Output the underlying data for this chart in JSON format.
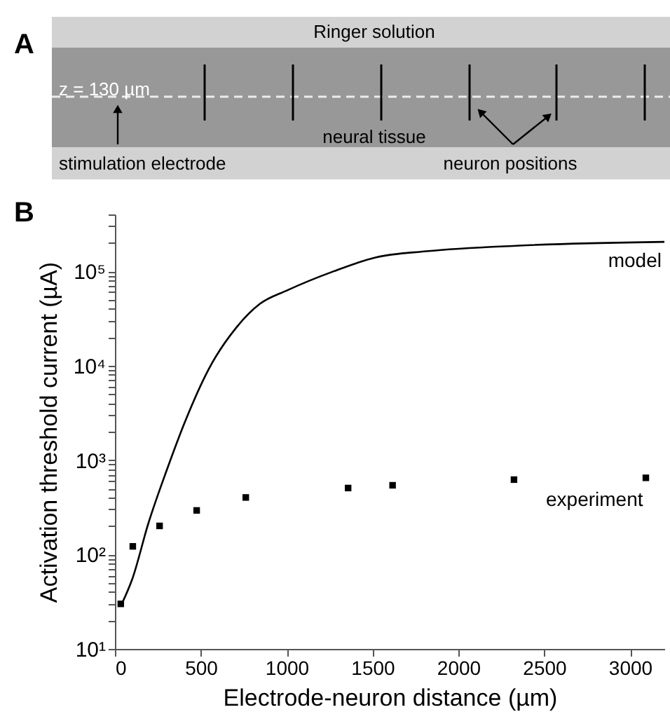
{
  "chart_data": {
    "type": "line",
    "xlabel": "Electrode-neuron distance (µm)",
    "ylabel": "Activation threshold current (µA)",
    "log": "y",
    "grid": false,
    "xlim": [
      0,
      3200
    ],
    "xticks": [
      0,
      500,
      1000,
      1500,
      2000,
      2500,
      3000
    ],
    "ylim": [
      10,
      400000
    ],
    "yticks": [
      {
        "value": 10,
        "label": "10¹"
      },
      {
        "value": 20,
        "label": null
      },
      {
        "value": 30,
        "label": null
      },
      {
        "value": 40,
        "label": null
      },
      {
        "value": 50,
        "label": null
      },
      {
        "value": 60,
        "label": null
      },
      {
        "value": 70,
        "label": null
      },
      {
        "value": 80,
        "label": null
      },
      {
        "value": 90,
        "label": null
      },
      {
        "value": 100,
        "label": "10²"
      },
      {
        "value": 200,
        "label": null
      },
      {
        "value": 300,
        "label": null
      },
      {
        "value": 400,
        "label": null
      },
      {
        "value": 500,
        "label": null
      },
      {
        "value": 600,
        "label": null
      },
      {
        "value": 700,
        "label": null
      },
      {
        "value": 800,
        "label": null
      },
      {
        "value": 900,
        "label": null
      },
      {
        "value": 1000,
        "label": "10³"
      },
      {
        "value": 2000,
        "label": null
      },
      {
        "value": 3000,
        "label": null
      },
      {
        "value": 4000,
        "label": null
      },
      {
        "value": 5000,
        "label": null
      },
      {
        "value": 6000,
        "label": null
      },
      {
        "value": 7000,
        "label": null
      },
      {
        "value": 8000,
        "label": null
      },
      {
        "value": 9000,
        "label": null
      },
      {
        "value": 10000,
        "label": "10⁴"
      },
      {
        "value": 20000,
        "label": null
      },
      {
        "value": 30000,
        "label": null
      },
      {
        "value": 40000,
        "label": null
      },
      {
        "value": 50000,
        "label": null
      },
      {
        "value": 60000,
        "label": null
      },
      {
        "value": 70000,
        "label": null
      },
      {
        "value": 80000,
        "label": null
      },
      {
        "value": 90000,
        "label": null
      },
      {
        "value": 100000,
        "label": "10⁵"
      },
      {
        "value": 200000,
        "label": null
      },
      {
        "value": 300000,
        "label": null
      },
      {
        "value": 400000,
        "label": null
      }
    ],
    "annotations": [
      "A",
      "B",
      "Ringer solution",
      "z = 130 µm",
      "neural tissue",
      "stimulation electrode",
      "neuron positions"
    ],
    "series": [
      {
        "name": "model",
        "type": "line",
        "color": "#000000",
        "line_style": "solid",
        "marker": "none",
        "x": [
          40,
          101,
          195,
          303,
          411,
          546,
          708,
          843,
          1005,
          1274,
          1517,
          1814,
          2353,
          3200
        ],
        "values": [
          30,
          55,
          215,
          795,
          2630,
          9190,
          25500,
          45000,
          63000,
          100000,
          140000,
          163000,
          187000,
          205000
        ]
      },
      {
        "name": "experiment",
        "type": "scatter",
        "color": "#000000",
        "marker": "square",
        "x": [
          34,
          104,
          260,
          476,
          762,
          1358,
          1617,
          2324,
          3092
        ],
        "values": [
          30,
          122,
          201,
          293,
          402,
          506,
          541,
          621,
          649
        ]
      }
    ]
  }
}
